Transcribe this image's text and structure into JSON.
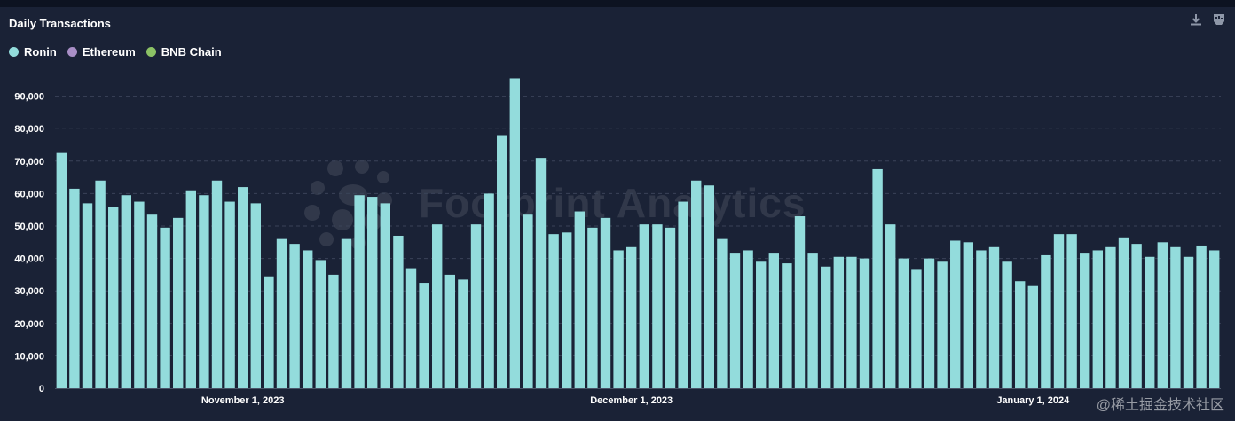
{
  "title": "Daily Transactions",
  "legend": [
    {
      "label": "Ronin",
      "color": "#93dcdc"
    },
    {
      "label": "Ethereum",
      "color": "#a98fc7"
    },
    {
      "label": "BNB Chain",
      "color": "#8cc265"
    }
  ],
  "toolbar": {
    "download_icon": "download-icon",
    "export_icon": "image-export-icon"
  },
  "watermark": "Footprint Analytics",
  "corner_watermark": "@稀土掘金技术社区",
  "chart_data": {
    "type": "bar",
    "title": "Daily Transactions",
    "xlabel": "",
    "ylabel": "",
    "ylim": [
      0,
      100000
    ],
    "yticks": [
      0,
      10000,
      20000,
      30000,
      40000,
      50000,
      60000,
      70000,
      80000,
      90000
    ],
    "ytick_labels": [
      "0",
      "10,000",
      "20,000",
      "30,000",
      "40,000",
      "50,000",
      "60,000",
      "70,000",
      "80,000",
      "90,000"
    ],
    "xtick_labels": [
      {
        "label": "November 1, 2023",
        "index": 14
      },
      {
        "label": "December 1, 2023",
        "index": 44
      },
      {
        "label": "January 1, 2024",
        "index": 75
      }
    ],
    "grid": true,
    "legend_position": "top-left",
    "series": [
      {
        "name": "Ronin",
        "color": "#93dcdc",
        "values": [
          72500,
          61500,
          57000,
          64000,
          56000,
          59500,
          57500,
          53500,
          49500,
          52500,
          61000,
          59500,
          64000,
          57500,
          62000,
          57000,
          34500,
          46000,
          44500,
          42500,
          39500,
          35000,
          46000,
          59500,
          59000,
          57000,
          47000,
          37000,
          32500,
          50500,
          35000,
          33500,
          50500,
          60000,
          78000,
          95500,
          53500,
          71000,
          47500,
          48000,
          54500,
          49500,
          52500,
          42500,
          43500,
          50500,
          50500,
          49500,
          57500,
          64000,
          62500,
          46000,
          41500,
          42500,
          39000,
          41500,
          38500,
          53000,
          41500,
          37500,
          40500,
          40500,
          40000,
          67500,
          50500,
          40000,
          36500,
          40000,
          39000,
          45500,
          45000,
          42500,
          43500,
          39000,
          33000,
          31500,
          41000,
          47500,
          47500,
          41500,
          42500,
          43500,
          46500,
          44500,
          40500,
          45000,
          43500,
          40500,
          44000,
          42500
        ]
      },
      {
        "name": "Ethereum",
        "color": "#a98fc7",
        "values": []
      },
      {
        "name": "BNB Chain",
        "color": "#8cc265",
        "values": []
      }
    ]
  }
}
